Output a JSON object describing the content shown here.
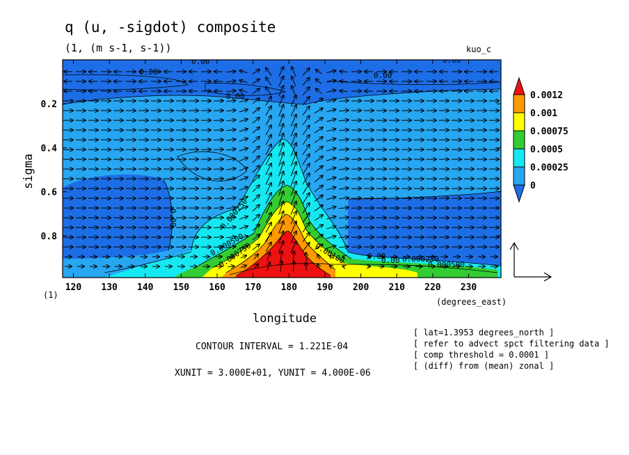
{
  "chart_data": {
    "type": "heatmap",
    "title": "q (u, -sigdot) composite",
    "subtitle": "(1, (m s-1, s-1))",
    "dataset_label": "kuo_c",
    "xlabel": "longitude",
    "xunit_label": "(degrees_east)",
    "ylabel": "sigma",
    "yunit_label": "(1)",
    "xlim": [
      117,
      239
    ],
    "ylim": [
      0.99,
      0.0
    ],
    "x_ticks": [
      "120",
      "130",
      "140",
      "150",
      "160",
      "170",
      "180",
      "190",
      "200",
      "210",
      "220",
      "230"
    ],
    "y_ticks": [
      "0.2",
      "0.4",
      "0.6",
      "0.8"
    ],
    "colorbar": {
      "levels": [
        "0",
        "0.00025",
        "0.0005",
        "0.00075",
        "0.001",
        "0.0012"
      ],
      "colors": [
        "#1d6ee6",
        "#27a6f2",
        "#16e8f2",
        "#33cc33",
        "#ffff00",
        "#ff9900",
        "#ee1111"
      ]
    },
    "contour_labels": [
      "0.00",
      "0.00",
      "0.00",
      "0.00",
      "0.00",
      "0.00",
      "0.00",
      "0.000250",
      "0.000500",
      "0.000750",
      "0.00100",
      "0.00",
      "0.000250",
      "0.000500"
    ],
    "peak": {
      "lon": 180,
      "sigma": 0.92,
      "value": 0.0012
    },
    "contour_interval": "CONTOUR INTERVAL = 1.221E-04",
    "vector_units": "XUNIT = 3.000E+01, YUNIT = 4.000E-06",
    "notes": [
      "[ lat=1.3953 degrees_north ]",
      "[ refer to advect spct filtering data ]",
      "[ comp threshold = 0.0001 ]",
      "[ (diff) from (mean) zonal ]"
    ]
  }
}
